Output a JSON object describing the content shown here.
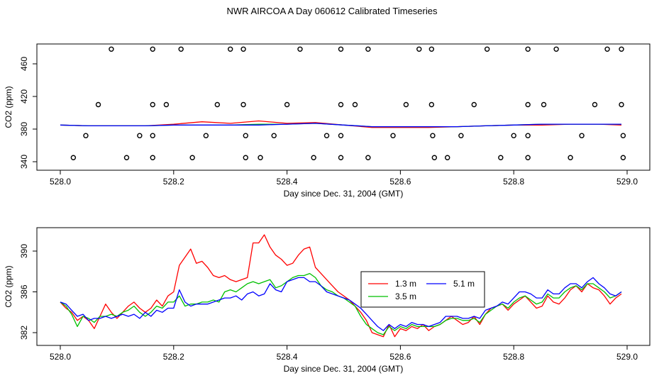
{
  "page_title": "NWR AIRCOA A  Day 060612  Calibrated Timeseries",
  "colors": {
    "h13": "#ff0000",
    "h35": "#00c000",
    "h51": "#0000ff",
    "axis": "#000000"
  },
  "chart_data": [
    {
      "type": "line+scatter",
      "title": "",
      "xlabel": "Day since Dec. 31, 2004 (GMT)",
      "ylabel": "CO2 (ppm)",
      "xlim": [
        528.0,
        529.0
      ],
      "ylim": [
        340,
        480
      ],
      "x_ticks": [
        528.0,
        528.2,
        528.4,
        528.6,
        528.8,
        529.0
      ],
      "x_tick_labels": [
        "528.0",
        "528.2",
        "528.4",
        "528.6",
        "528.8",
        "529.0"
      ],
      "y_ticks": [
        340,
        380,
        420,
        460
      ],
      "y_tick_labels": [
        "340",
        "380",
        "420",
        "460"
      ],
      "calibration_points": {
        "marker": "open-circle",
        "x_478": [
          528.09,
          528.163,
          528.213,
          528.3,
          528.323,
          528.423,
          528.495,
          528.543,
          528.633,
          528.655,
          528.753,
          528.825,
          528.875,
          528.965,
          528.99
        ],
        "x_410": [
          528.067,
          528.163,
          528.187,
          528.277,
          528.323,
          528.4,
          528.495,
          528.52,
          528.61,
          528.655,
          528.73,
          528.825,
          528.853,
          528.943,
          528.99
        ],
        "x_372": [
          528.045,
          528.14,
          528.163,
          528.257,
          528.327,
          528.377,
          528.47,
          528.495,
          528.587,
          528.657,
          528.707,
          528.8,
          528.825,
          528.92,
          528.993
        ],
        "x_345": [
          528.023,
          528.117,
          528.163,
          528.233,
          528.327,
          528.353,
          528.447,
          528.495,
          528.543,
          528.66,
          528.683,
          528.777,
          528.825,
          528.9,
          528.993
        ]
      },
      "series": [
        {
          "name": "1.3 m",
          "color": "#ff0000",
          "x": [
            528.0,
            528.05,
            528.1,
            528.15,
            528.2,
            528.25,
            528.3,
            528.35,
            528.4,
            528.45,
            528.5,
            528.55,
            528.6,
            528.65,
            528.7,
            528.75,
            528.8,
            528.85,
            528.9,
            528.95,
            528.99
          ],
          "y": [
            385,
            384,
            384,
            384,
            386,
            389,
            387,
            390,
            387,
            388,
            385,
            382,
            382,
            382,
            383,
            384,
            385,
            385,
            386,
            386,
            385
          ]
        },
        {
          "name": "3.5 m",
          "color": "#00c000",
          "x": [
            528.0,
            528.05,
            528.1,
            528.15,
            528.2,
            528.25,
            528.3,
            528.35,
            528.4,
            528.45,
            528.5,
            528.55,
            528.6,
            528.65,
            528.7,
            528.75,
            528.8,
            528.85,
            528.9,
            528.95,
            528.99
          ],
          "y": [
            385,
            384,
            384,
            384,
            385,
            385,
            385,
            386,
            386,
            387,
            385,
            383,
            383,
            383,
            383,
            384,
            385,
            386,
            386,
            386,
            386
          ]
        },
        {
          "name": "5.1 m",
          "color": "#0000ff",
          "x": [
            528.0,
            528.05,
            528.1,
            528.15,
            528.2,
            528.25,
            528.3,
            528.35,
            528.4,
            528.45,
            528.5,
            528.55,
            528.6,
            528.65,
            528.7,
            528.75,
            528.8,
            528.85,
            528.9,
            528.95,
            528.99
          ],
          "y": [
            385,
            384,
            384,
            384,
            385,
            385,
            385,
            385,
            386,
            387,
            385,
            383,
            383,
            383,
            383,
            384,
            385,
            386,
            386,
            386,
            386
          ]
        }
      ]
    },
    {
      "type": "line",
      "title": "",
      "xlabel": "Day since Dec. 31, 2004 (GMT)",
      "ylabel": "CO2 (ppm)",
      "xlim": [
        528.0,
        529.0
      ],
      "ylim": [
        381,
        392
      ],
      "x_ticks": [
        528.0,
        528.2,
        528.4,
        528.6,
        528.8,
        529.0
      ],
      "x_tick_labels": [
        "528.0",
        "528.2",
        "528.4",
        "528.6",
        "528.8",
        "529.0"
      ],
      "y_ticks": [
        382,
        386,
        390
      ],
      "y_tick_labels": [
        "382",
        "386",
        "390"
      ],
      "legend": {
        "position": "center-right",
        "entries": [
          "1.3 m",
          "3.5 m",
          "5.1 m"
        ]
      },
      "series": [
        {
          "name": "1.3 m",
          "color": "#ff0000",
          "x": [
            528.0,
            528.01,
            528.02,
            528.03,
            528.04,
            528.05,
            528.06,
            528.07,
            528.08,
            528.09,
            528.1,
            528.11,
            528.12,
            528.13,
            528.14,
            528.15,
            528.16,
            528.17,
            528.18,
            528.19,
            528.2,
            528.21,
            528.22,
            528.23,
            528.24,
            528.25,
            528.26,
            528.27,
            528.28,
            528.29,
            528.3,
            528.31,
            528.32,
            528.33,
            528.34,
            528.35,
            528.36,
            528.37,
            528.38,
            528.39,
            528.4,
            528.41,
            528.42,
            528.43,
            528.44,
            528.45,
            528.46,
            528.47,
            528.48,
            528.49,
            528.5,
            528.51,
            528.52,
            528.53,
            528.54,
            528.55,
            528.56,
            528.57,
            528.58,
            528.59,
            528.6,
            528.61,
            528.62,
            528.63,
            528.64,
            528.65,
            528.66,
            528.67,
            528.68,
            528.69,
            528.7,
            528.71,
            528.72,
            528.73,
            528.74,
            528.75,
            528.76,
            528.77,
            528.78,
            528.79,
            528.8,
            528.81,
            528.82,
            528.83,
            528.84,
            528.85,
            528.86,
            528.87,
            528.88,
            528.89,
            528.9,
            528.91,
            528.92,
            528.93,
            528.94,
            528.95,
            528.96,
            528.97,
            528.98,
            528.99
          ],
          "y": [
            385.0,
            384.4,
            384.0,
            383.2,
            383.6,
            383.2,
            382.4,
            383.6,
            384.8,
            384.0,
            383.4,
            384.0,
            384.6,
            385.0,
            384.4,
            384.0,
            384.4,
            385.2,
            384.6,
            385.6,
            386.0,
            388.6,
            389.4,
            390.2,
            388.8,
            389.0,
            388.4,
            387.6,
            387.4,
            387.6,
            387.2,
            387.0,
            387.2,
            387.4,
            390.8,
            390.8,
            391.6,
            390.4,
            389.6,
            389.2,
            388.6,
            388.8,
            389.6,
            390.2,
            390.4,
            388.4,
            387.8,
            387.2,
            386.6,
            386.0,
            385.6,
            385.2,
            384.6,
            384.0,
            383.2,
            382.0,
            381.8,
            381.6,
            382.8,
            381.6,
            382.4,
            382.2,
            382.6,
            382.4,
            382.8,
            382.2,
            382.6,
            382.8,
            383.2,
            383.6,
            383.2,
            382.8,
            383.0,
            383.6,
            382.8,
            383.8,
            384.4,
            384.6,
            384.8,
            384.2,
            384.8,
            385.2,
            385.6,
            385.0,
            384.4,
            384.6,
            385.6,
            385.0,
            384.8,
            385.4,
            386.2,
            386.6,
            386.0,
            386.8,
            386.4,
            386.2,
            385.6,
            384.8,
            385.4,
            385.8
          ]
        },
        {
          "name": "3.5 m",
          "color": "#00c000",
          "x": [
            528.0,
            528.01,
            528.02,
            528.03,
            528.04,
            528.05,
            528.06,
            528.07,
            528.08,
            528.09,
            528.1,
            528.11,
            528.12,
            528.13,
            528.14,
            528.15,
            528.16,
            528.17,
            528.18,
            528.19,
            528.2,
            528.21,
            528.22,
            528.23,
            528.24,
            528.25,
            528.26,
            528.27,
            528.28,
            528.29,
            528.3,
            528.31,
            528.32,
            528.33,
            528.34,
            528.35,
            528.36,
            528.37,
            528.38,
            528.39,
            528.4,
            528.41,
            528.42,
            528.43,
            528.44,
            528.45,
            528.46,
            528.47,
            528.48,
            528.49,
            528.5,
            528.51,
            528.52,
            528.53,
            528.54,
            528.55,
            528.56,
            528.57,
            528.58,
            528.59,
            528.6,
            528.61,
            528.62,
            528.63,
            528.64,
            528.65,
            528.66,
            528.67,
            528.68,
            528.69,
            528.7,
            528.71,
            528.72,
            528.73,
            528.74,
            528.75,
            528.76,
            528.77,
            528.78,
            528.79,
            528.8,
            528.81,
            528.82,
            528.83,
            528.84,
            528.85,
            528.86,
            528.87,
            528.88,
            528.89,
            528.9,
            528.91,
            528.92,
            528.93,
            528.94,
            528.95,
            528.96,
            528.97,
            528.98,
            528.99
          ],
          "y": [
            385.0,
            384.6,
            383.8,
            382.6,
            383.6,
            383.4,
            383.0,
            383.6,
            383.6,
            383.8,
            383.6,
            384.0,
            384.2,
            384.6,
            384.0,
            383.6,
            384.0,
            384.6,
            384.4,
            385.0,
            385.0,
            385.6,
            384.6,
            384.8,
            384.8,
            385.0,
            385.0,
            385.2,
            385.0,
            386.0,
            386.2,
            386.0,
            386.4,
            386.8,
            387.0,
            386.8,
            387.0,
            387.2,
            386.4,
            386.6,
            387.0,
            387.4,
            387.6,
            387.6,
            387.8,
            387.4,
            386.6,
            386.2,
            386.0,
            385.6,
            385.4,
            385.0,
            384.6,
            383.6,
            382.8,
            382.4,
            382.0,
            381.8,
            382.6,
            382.2,
            382.6,
            382.4,
            382.8,
            382.6,
            382.6,
            382.6,
            382.6,
            382.8,
            383.2,
            383.4,
            383.4,
            383.2,
            383.2,
            383.4,
            383.0,
            383.8,
            384.2,
            384.6,
            384.8,
            384.4,
            385.0,
            385.4,
            385.6,
            385.2,
            384.8,
            385.0,
            385.8,
            385.4,
            385.4,
            386.0,
            386.4,
            386.6,
            386.2,
            386.8,
            386.8,
            386.4,
            386.0,
            385.4,
            385.6,
            386.0
          ]
        },
        {
          "name": "5.1 m",
          "color": "#0000ff",
          "x": [
            528.0,
            528.01,
            528.02,
            528.03,
            528.04,
            528.05,
            528.06,
            528.07,
            528.08,
            528.09,
            528.1,
            528.11,
            528.12,
            528.13,
            528.14,
            528.15,
            528.16,
            528.17,
            528.18,
            528.19,
            528.2,
            528.21,
            528.22,
            528.23,
            528.24,
            528.25,
            528.26,
            528.27,
            528.28,
            528.29,
            528.3,
            528.31,
            528.32,
            528.33,
            528.34,
            528.35,
            528.36,
            528.37,
            528.38,
            528.39,
            528.4,
            528.41,
            528.42,
            528.43,
            528.44,
            528.45,
            528.46,
            528.47,
            528.48,
            528.49,
            528.5,
            528.51,
            528.52,
            528.53,
            528.54,
            528.55,
            528.56,
            528.57,
            528.58,
            528.59,
            528.6,
            528.61,
            528.62,
            528.63,
            528.64,
            528.65,
            528.66,
            528.67,
            528.68,
            528.69,
            528.7,
            528.71,
            528.72,
            528.73,
            528.74,
            528.75,
            528.76,
            528.77,
            528.78,
            528.79,
            528.8,
            528.81,
            528.82,
            528.83,
            528.84,
            528.85,
            528.86,
            528.87,
            528.88,
            528.89,
            528.9,
            528.91,
            528.92,
            528.93,
            528.94,
            528.95,
            528.96,
            528.97,
            528.98,
            528.99
          ],
          "y": [
            385.0,
            384.8,
            384.2,
            383.6,
            383.8,
            383.2,
            383.4,
            383.4,
            383.6,
            383.4,
            383.6,
            383.8,
            383.6,
            383.8,
            383.4,
            384.0,
            383.6,
            384.2,
            384.0,
            384.4,
            384.4,
            386.2,
            385.0,
            384.6,
            384.8,
            384.8,
            384.8,
            385.0,
            385.2,
            385.4,
            385.4,
            385.6,
            385.2,
            385.8,
            386.0,
            385.6,
            385.8,
            386.8,
            386.2,
            386.0,
            387.0,
            387.2,
            387.4,
            387.4,
            387.0,
            387.0,
            386.6,
            386.0,
            385.8,
            385.6,
            385.4,
            385.2,
            384.8,
            384.4,
            383.8,
            383.2,
            382.6,
            382.2,
            382.8,
            382.4,
            382.8,
            382.6,
            383.0,
            382.8,
            382.8,
            382.6,
            382.8,
            383.0,
            383.6,
            383.6,
            383.6,
            383.4,
            383.4,
            383.6,
            383.4,
            384.2,
            384.4,
            384.6,
            385.0,
            384.8,
            385.4,
            386.0,
            386.0,
            385.8,
            385.4,
            385.4,
            386.2,
            385.8,
            385.8,
            386.4,
            386.8,
            386.8,
            386.4,
            387.0,
            387.4,
            386.8,
            386.4,
            385.8,
            385.6,
            386.0
          ]
        }
      ]
    }
  ]
}
